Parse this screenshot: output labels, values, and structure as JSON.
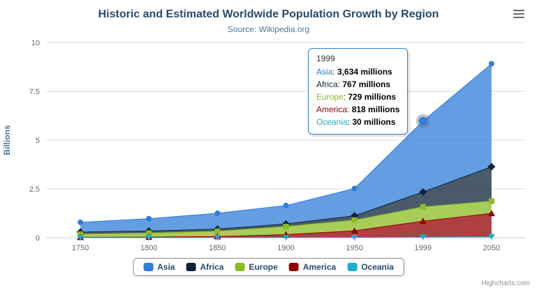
{
  "chart": {
    "credits_label": "Highcharts.com"
  },
  "chart_data": {
    "type": "area",
    "stacking": "normal",
    "title": "Historic and Estimated Worldwide Population Growth by Region",
    "subtitle": "Source: Wikipedia.org",
    "categories": [
      "1750",
      "1800",
      "1850",
      "1900",
      "1950",
      "1999",
      "2050"
    ],
    "xlabel": "",
    "ylabel": "Billions",
    "ylim": [
      0,
      10
    ],
    "yticks": [
      0,
      2.5,
      5,
      7.5,
      10
    ],
    "unit": "millions",
    "grid": true,
    "legend_position": "bottom",
    "series": [
      {
        "name": "Asia",
        "color": "#2f7ed8",
        "marker": "circle",
        "values": [
          502,
          635,
          809,
          947,
          1402,
          3634,
          5268
        ]
      },
      {
        "name": "Africa",
        "color": "#0d233a",
        "marker": "diamond",
        "values": [
          106,
          107,
          111,
          133,
          221,
          767,
          1766
        ]
      },
      {
        "name": "Europe",
        "color": "#8bbc21",
        "marker": "square",
        "values": [
          163,
          203,
          276,
          408,
          547,
          729,
          628
        ]
      },
      {
        "name": "America",
        "color": "#910000",
        "marker": "triangle",
        "values": [
          18,
          31,
          54,
          156,
          339,
          818,
          1201
        ]
      },
      {
        "name": "Oceania",
        "color": "#1aadce",
        "marker": "triangle-down",
        "values": [
          2,
          2,
          2,
          6,
          13,
          30,
          46
        ]
      }
    ],
    "hover_point": {
      "series": "Asia",
      "category": "1999"
    }
  },
  "tooltip": {
    "header": "1999",
    "rows": [
      {
        "label": "Asia",
        "value": "3,634 millions"
      },
      {
        "label": "Africa",
        "value": "767 millions"
      },
      {
        "label": "Europe",
        "value": "729 millions"
      },
      {
        "label": "America",
        "value": "818 millions"
      },
      {
        "label": "Oceania",
        "value": "30 millions"
      }
    ]
  }
}
